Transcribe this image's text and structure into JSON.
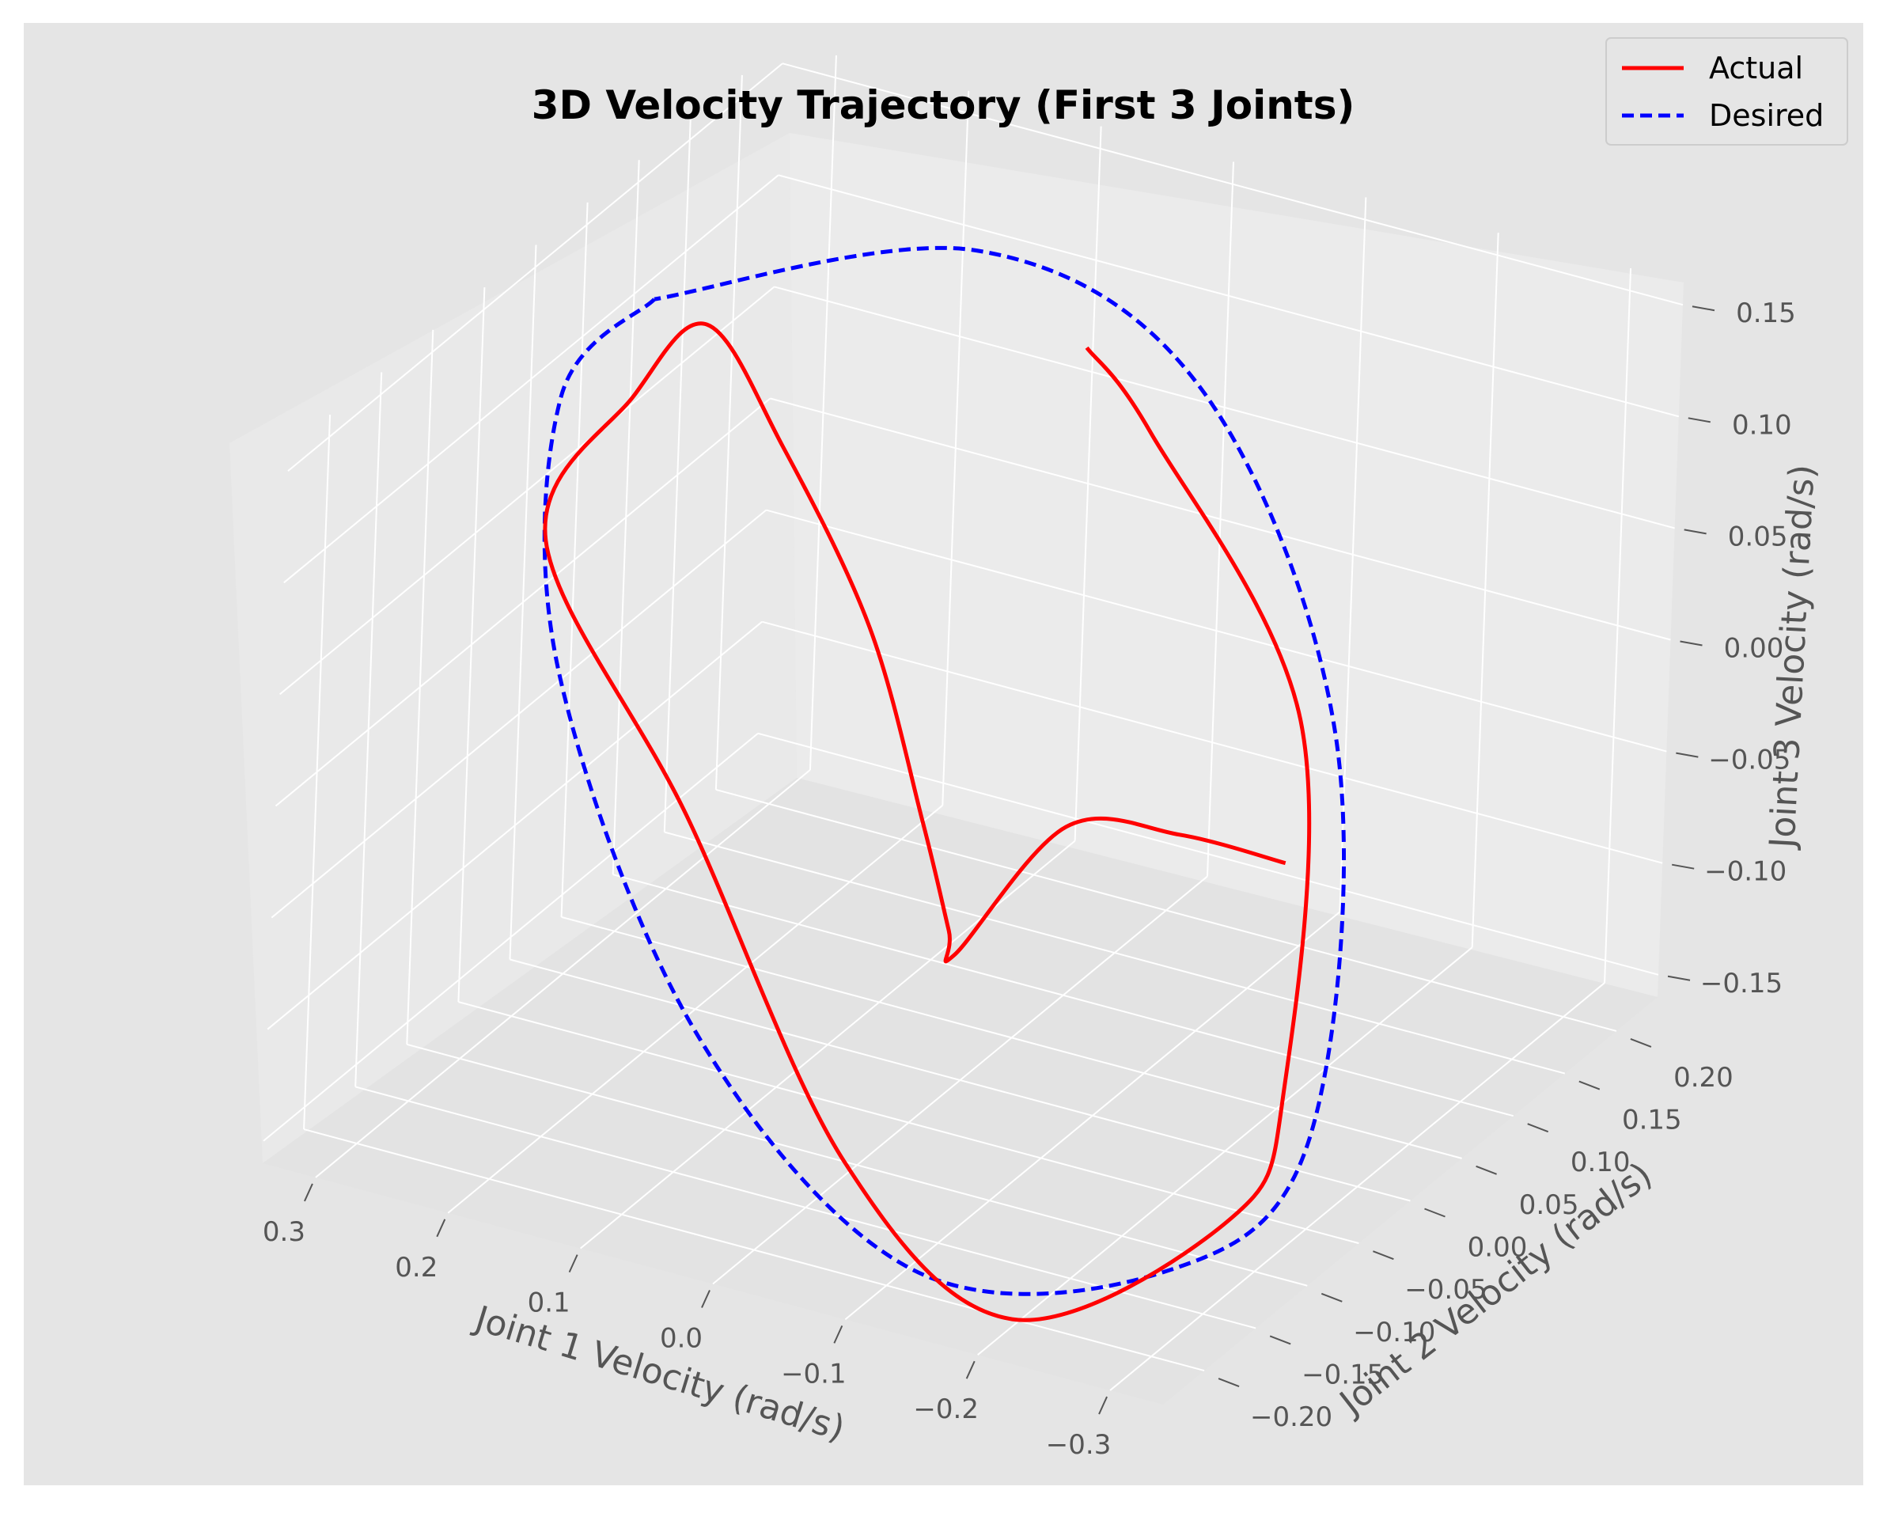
{
  "chart_data": {
    "type": "line3d",
    "title": "3D Velocity Trajectory (First 3 Joints)",
    "axes": {
      "x": {
        "label": "Joint 1 Velocity (rad/s)",
        "range": [
          -0.34,
          0.34
        ],
        "ticks": [
          -0.3,
          -0.2,
          -0.1,
          0.0,
          0.1,
          0.2,
          0.3
        ],
        "tick_labels": [
          "−0.3",
          "−0.2",
          "−0.1",
          "0.0",
          "0.1",
          "0.2",
          "0.3"
        ]
      },
      "y": {
        "label": "Joint 2 Velocity (rad/s)",
        "range": [
          -0.24,
          0.24
        ],
        "ticks": [
          -0.2,
          -0.15,
          -0.1,
          -0.05,
          0.0,
          0.05,
          0.1,
          0.15,
          0.2
        ],
        "tick_labels": [
          "−0.20",
          "−0.15",
          "−0.10",
          "−0.05",
          "0.00",
          "0.05",
          "0.10",
          "0.15",
          "0.20"
        ]
      },
      "z": {
        "label": "Joint 3 Velocity (rad/s)",
        "range": [
          -0.16,
          0.16
        ],
        "ticks": [
          -0.15,
          -0.1,
          -0.05,
          0.0,
          0.05,
          0.1,
          0.15
        ],
        "tick_labels": [
          "−0.15",
          "−0.10",
          "−0.05",
          "0.00",
          "0.05",
          "0.10",
          "0.15"
        ]
      }
    },
    "grid": true,
    "legend": {
      "position": "top-right",
      "entries": [
        {
          "label": "Actual",
          "color": "#ff0000",
          "style": "solid"
        },
        {
          "label": "Desired",
          "color": "#0000ff",
          "style": "dashed"
        }
      ]
    },
    "series": [
      {
        "name": "Actual",
        "color": "#ff0000",
        "style": "solid",
        "points": [
          {
            "x": -0.2,
            "y": 0.05,
            "z": -0.05
          },
          {
            "x": -0.12,
            "y": 0.05,
            "z": -0.05
          },
          {
            "x": -0.05,
            "y": 0.03,
            "z": -0.05
          },
          {
            "x": 0.03,
            "y": 0.03,
            "z": -0.12
          },
          {
            "x": 0.02,
            "y": 0.01,
            "z": -0.1
          },
          {
            "x": 0.035,
            "y": 0.0,
            "z": -0.05
          },
          {
            "x": 0.08,
            "y": 0.0,
            "z": 0.03
          },
          {
            "x": 0.15,
            "y": 0.0,
            "z": 0.1
          },
          {
            "x": 0.21,
            "y": 0.0,
            "z": 0.145
          },
          {
            "x": 0.24,
            "y": -0.03,
            "z": 0.12
          },
          {
            "x": 0.22,
            "y": -0.14,
            "z": 0.1
          },
          {
            "x": 0.1,
            "y": -0.15,
            "z": 0.0
          },
          {
            "x": -0.05,
            "y": -0.18,
            "z": -0.12
          },
          {
            "x": -0.18,
            "y": -0.18,
            "z": -0.17
          },
          {
            "x": -0.28,
            "y": -0.1,
            "z": -0.14
          },
          {
            "x": -0.28,
            "y": -0.05,
            "z": -0.1
          },
          {
            "x": -0.2,
            "y": 0.06,
            "z": 0.01
          },
          {
            "x": -0.05,
            "y": 0.1,
            "z": 0.1
          },
          {
            "x": 0.0,
            "y": 0.1,
            "z": 0.13
          }
        ]
      },
      {
        "name": "Desired",
        "color": "#0000ff",
        "style": "dashed",
        "points": [
          {
            "x": 0.25,
            "y": 0.0,
            "z": 0.15
          },
          {
            "x": 0.28,
            "y": -0.05,
            "z": 0.12
          },
          {
            "x": 0.2,
            "y": -0.15,
            "z": 0.05
          },
          {
            "x": 0.05,
            "y": -0.2,
            "z": -0.07
          },
          {
            "x": -0.12,
            "y": -0.2,
            "z": -0.15
          },
          {
            "x": -0.25,
            "y": -0.12,
            "z": -0.16
          },
          {
            "x": -0.3,
            "y": -0.05,
            "z": -0.12
          },
          {
            "x": -0.22,
            "y": 0.07,
            "z": 0.0
          },
          {
            "x": -0.05,
            "y": 0.15,
            "z": 0.1
          },
          {
            "x": 0.1,
            "y": 0.12,
            "z": 0.15
          },
          {
            "x": 0.25,
            "y": 0.0,
            "z": 0.15
          }
        ]
      }
    ]
  }
}
